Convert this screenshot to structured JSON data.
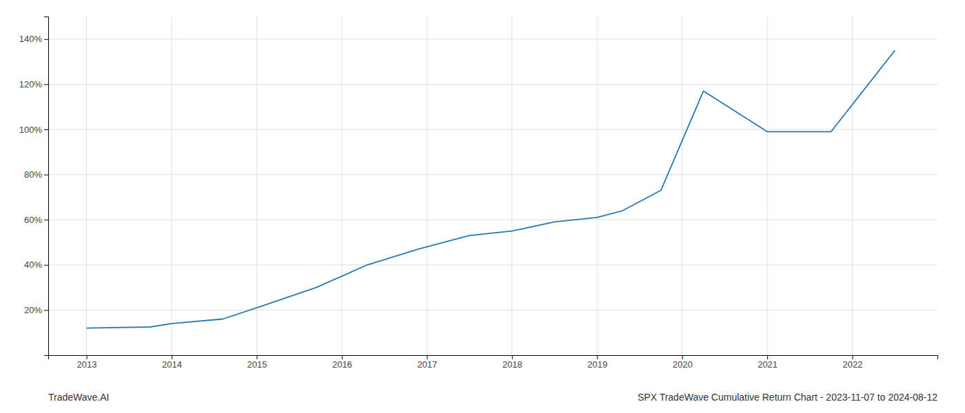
{
  "chart_data": {
    "type": "line",
    "title": "SPX TradeWave Cumulative Return Chart - 2023-11-07 to 2024-08-12",
    "annotations": [
      "TradeWave.AI"
    ],
    "x": [
      2013.0,
      2013.75,
      2014.0,
      2014.6,
      2015.0,
      2015.7,
      2016.3,
      2016.9,
      2017.5,
      2018.0,
      2018.5,
      2019.0,
      2019.3,
      2019.75,
      2020.25,
      2021.0,
      2021.75,
      2022.5
    ],
    "values": [
      12,
      12.5,
      14,
      16,
      21,
      30,
      40,
      47,
      53,
      55,
      59,
      61,
      64,
      73,
      117,
      99,
      99,
      135
    ],
    "color": "#2878b5",
    "xlim": [
      2012.55,
      2023.0
    ],
    "xticks": [
      2013,
      2014,
      2015,
      2016,
      2017,
      2018,
      2019,
      2020,
      2021,
      2022
    ],
    "ylim": [
      0,
      150
    ],
    "yticks": [
      {
        "value": 20,
        "label": "20%"
      },
      {
        "value": 40,
        "label": "40%"
      },
      {
        "value": 60,
        "label": "60%"
      },
      {
        "value": 80,
        "label": "80%"
      },
      {
        "value": 100,
        "label": "100%"
      },
      {
        "value": 120,
        "label": "120%"
      },
      {
        "value": 140,
        "label": "140%"
      }
    ],
    "grid": true
  }
}
